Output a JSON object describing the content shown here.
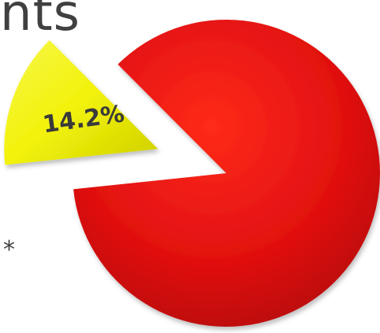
{
  "title_fragment": "nts",
  "footnote_fragment": "*",
  "chart_data": {
    "type": "pie",
    "categories": [
      "",
      ""
    ],
    "values": [
      85.8,
      14.2
    ],
    "data_labels": [
      "",
      "14.2%"
    ],
    "exploded": [
      false,
      true
    ],
    "colors": [
      "#e01010",
      "#f2f20a"
    ],
    "title": "",
    "legend": "none"
  }
}
